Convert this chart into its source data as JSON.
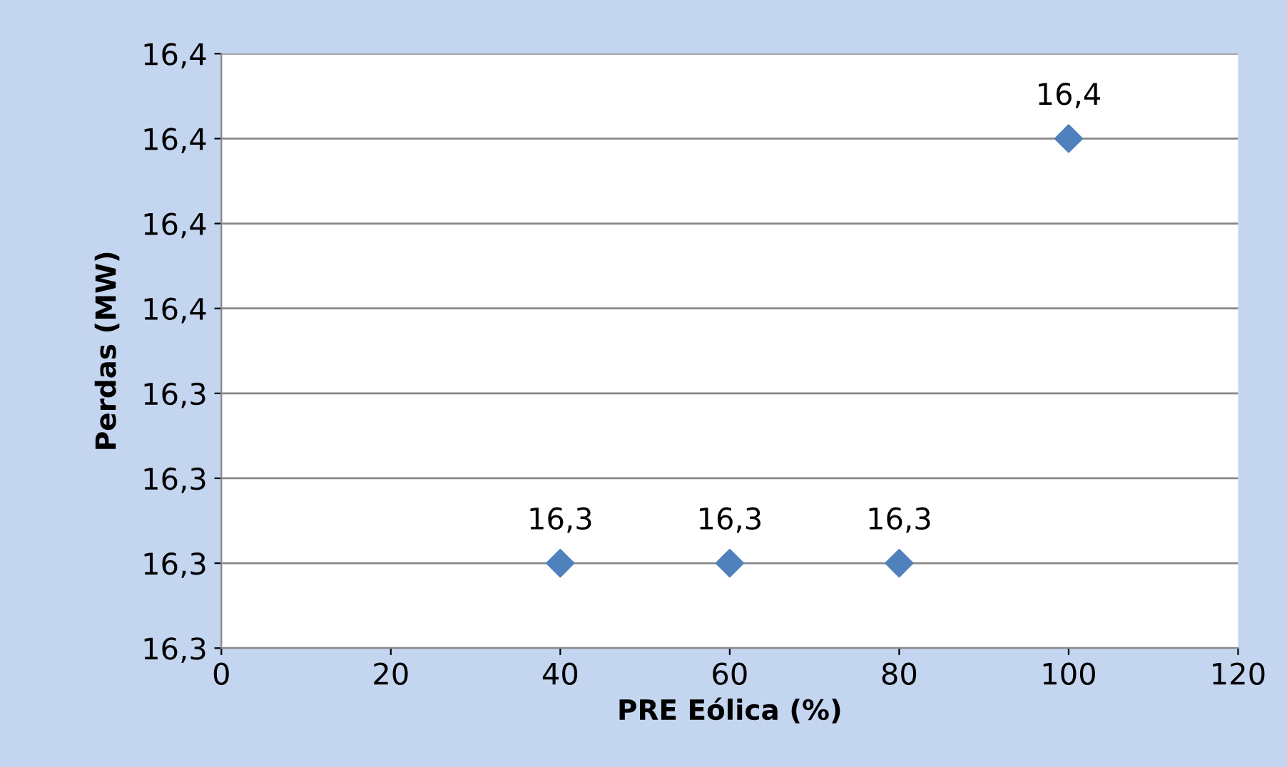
{
  "chart_data": {
    "type": "scatter",
    "xlabel": "PRE Eólica (%)",
    "ylabel": "Perdas (MW)",
    "x": [
      40,
      60,
      80,
      100
    ],
    "series": [
      {
        "color": "#4f81bd",
        "values": [
          16.3,
          16.3,
          16.3,
          16.4
        ],
        "value_labels": [
          "16,3",
          "16,3",
          "16,3",
          "16,4"
        ]
      }
    ],
    "xlim": [
      0,
      120
    ],
    "xticks": [
      0,
      20,
      40,
      60,
      80,
      100,
      120
    ],
    "ylim": [
      16.28,
      16.42
    ],
    "yticks": [
      {
        "value": 16.28,
        "label": "16,3"
      },
      {
        "value": 16.3,
        "label": "16,3"
      },
      {
        "value": 16.32,
        "label": "16,3"
      },
      {
        "value": 16.34,
        "label": "16,3"
      },
      {
        "value": 16.36,
        "label": "16,4"
      },
      {
        "value": 16.38,
        "label": "16,4"
      },
      {
        "value": 16.4,
        "label": "16,4"
      },
      {
        "value": 16.42,
        "label": "16,4"
      }
    ],
    "grid": "y",
    "marker": "diamond",
    "legend": false
  }
}
